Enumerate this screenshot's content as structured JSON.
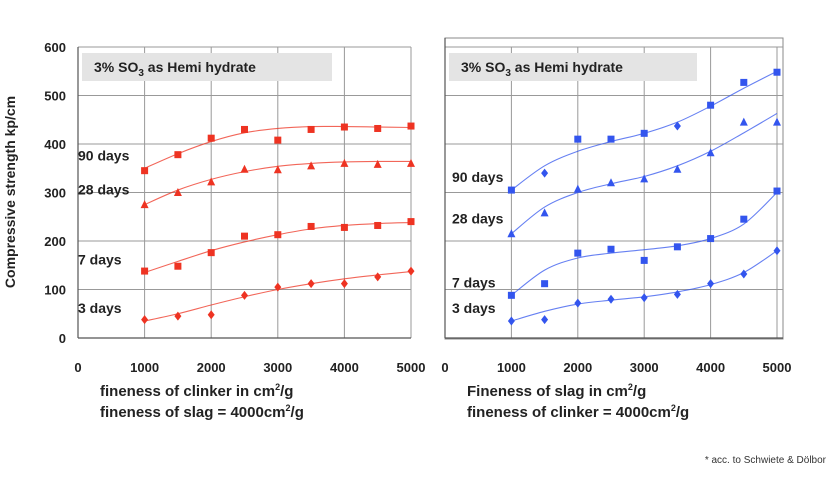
{
  "ylabel": "Compressive strength kp/cm",
  "footnote": "* acc. to Schwiete & Dölbor",
  "chart_data": [
    {
      "type": "scatter",
      "title_prefix": "3% SO",
      "title_sub": "3",
      "title_suffix": " as Hemi hydrate",
      "xlabel_line1_prefix": "fineness of clinker in cm",
      "xlabel_line1_sup": "2",
      "xlabel_line1_suffix": "/g",
      "xlabel_line2_prefix": "fineness of slag = 4000cm",
      "xlabel_line2_sup": "2",
      "xlabel_line2_suffix": "/g",
      "xlim": [
        0,
        5000
      ],
      "ylim": [
        0,
        600
      ],
      "xticks": [
        "0",
        "1000",
        "2000",
        "3000",
        "4000",
        "5000"
      ],
      "yticks": [
        "0",
        "100",
        "200",
        "300",
        "400",
        "500",
        "600"
      ],
      "grid": true,
      "color": "#ee3322",
      "series": [
        {
          "name": "90 days",
          "x": [
            1000,
            1500,
            2000,
            2500,
            3000,
            3500,
            4000,
            4500,
            5000
          ],
          "y": [
            345,
            378,
            412,
            430,
            408,
            430,
            435,
            432,
            437
          ],
          "curve": [
            350,
            380,
            405,
            423,
            432,
            436,
            436,
            435,
            434
          ],
          "markers": [
            "s",
            "s",
            "s",
            "s",
            "s",
            "s",
            "s",
            "s",
            "s"
          ]
        },
        {
          "name": "28 days",
          "x": [
            1000,
            1500,
            2000,
            2500,
            3000,
            3500,
            4000,
            4500,
            5000
          ],
          "y": [
            275,
            300,
            322,
            348,
            347,
            355,
            360,
            358,
            360
          ],
          "curve": [
            275,
            305,
            327,
            343,
            354,
            360,
            363,
            364,
            364
          ],
          "markers": [
            "t",
            "t",
            "t",
            "t",
            "t",
            "t",
            "t",
            "t",
            "t"
          ]
        },
        {
          "name": "7 days",
          "x": [
            1000,
            1500,
            2000,
            2500,
            3000,
            3500,
            4000,
            4500,
            5000
          ],
          "y": [
            138,
            148,
            176,
            210,
            213,
            230,
            228,
            232,
            240
          ],
          "curve": [
            135,
            158,
            180,
            198,
            213,
            225,
            232,
            236,
            238
          ],
          "markers": [
            "s",
            "s",
            "s",
            "s",
            "s",
            "s",
            "s",
            "s",
            "s"
          ]
        },
        {
          "name": "3 days",
          "x": [
            1000,
            1500,
            2000,
            2500,
            3000,
            3500,
            4000,
            4500,
            5000
          ],
          "y": [
            38,
            45,
            48,
            88,
            105,
            112,
            112,
            126,
            138
          ],
          "curve": [
            35,
            50,
            68,
            85,
            100,
            112,
            122,
            130,
            137
          ],
          "markers": [
            "d",
            "d",
            "d",
            "d",
            "d",
            "d",
            "d",
            "d",
            "d"
          ]
        }
      ]
    },
    {
      "type": "scatter",
      "title_prefix": "3% SO",
      "title_sub": "3",
      "title_suffix": " as Hemi hydrate",
      "xlabel_line1_prefix": "Fineness of slag in cm",
      "xlabel_line1_sup": "2",
      "xlabel_line1_suffix": "/g",
      "xlabel_line2_prefix": "fineness of clinker = 4000cm",
      "xlabel_line2_sup": "2",
      "xlabel_line2_suffix": "/g",
      "xlim": [
        0,
        5000
      ],
      "ylim": [
        0,
        600
      ],
      "xticks": [
        "0",
        "1000",
        "2000",
        "3000",
        "4000",
        "5000"
      ],
      "yticks": [],
      "grid": true,
      "color": "#3355ee",
      "series": [
        {
          "name": "90 days",
          "x": [
            1000,
            1500,
            2000,
            2500,
            3000,
            3500,
            4000,
            4500,
            5000
          ],
          "y": [
            305,
            340,
            410,
            410,
            422,
            437,
            480,
            527,
            548
          ],
          "curve": [
            305,
            355,
            385,
            405,
            422,
            445,
            478,
            515,
            550
          ],
          "markers": [
            "s",
            "d",
            "s",
            "s",
            "s",
            "d",
            "s",
            "s",
            "s"
          ]
        },
        {
          "name": "28 days",
          "x": [
            1000,
            1500,
            2000,
            2500,
            3000,
            3500,
            4000,
            4500,
            5000
          ],
          "y": [
            215,
            258,
            307,
            320,
            328,
            348,
            382,
            445,
            445
          ],
          "curve": [
            215,
            270,
            300,
            318,
            333,
            355,
            385,
            423,
            463
          ],
          "markers": [
            "t",
            "t",
            "t",
            "t",
            "t",
            "t",
            "t",
            "t",
            "t"
          ]
        },
        {
          "name": "7 days",
          "x": [
            1000,
            1500,
            2000,
            2500,
            3000,
            3500,
            4000,
            4500,
            5000
          ],
          "y": [
            88,
            112,
            175,
            183,
            160,
            188,
            205,
            245,
            303
          ],
          "curve": [
            88,
            140,
            165,
            175,
            182,
            190,
            205,
            235,
            300
          ],
          "markers": [
            "s",
            "s",
            "s",
            "s",
            "s",
            "s",
            "s",
            "s",
            "s"
          ]
        },
        {
          "name": "3 days",
          "x": [
            1000,
            1500,
            2000,
            2500,
            3000,
            3500,
            4000,
            4500,
            5000
          ],
          "y": [
            35,
            38,
            72,
            80,
            83,
            90,
            112,
            132,
            180
          ],
          "curve": [
            35,
            55,
            70,
            78,
            85,
            95,
            110,
            135,
            180
          ],
          "markers": [
            "d",
            "d",
            "d",
            "d",
            "d",
            "d",
            "d",
            "d",
            "d"
          ]
        }
      ]
    }
  ]
}
